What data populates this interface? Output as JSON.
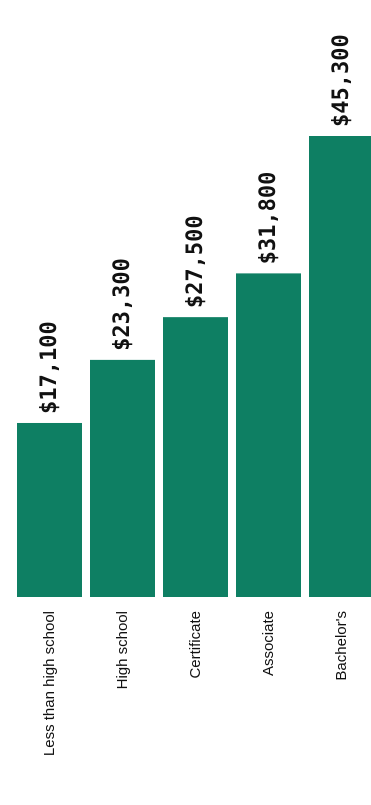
{
  "chart_data": {
    "type": "bar",
    "orientation": "vertical",
    "categories": [
      "Less than high school",
      "High school",
      "Certificate",
      "Associate",
      "Bachelor's"
    ],
    "values": [
      17100,
      23300,
      27500,
      31800,
      45300
    ],
    "value_labels": [
      "$17,100",
      "$23,300",
      "$27,500",
      "$31,800",
      "$45,300"
    ],
    "title": "",
    "xlabel": "",
    "ylabel": "",
    "ylim": [
      0,
      45300
    ],
    "grid": false,
    "legend": "none",
    "bar_color": "#0e7f63",
    "label_rotation": "rotated 90 degrees counter-clockwise"
  }
}
